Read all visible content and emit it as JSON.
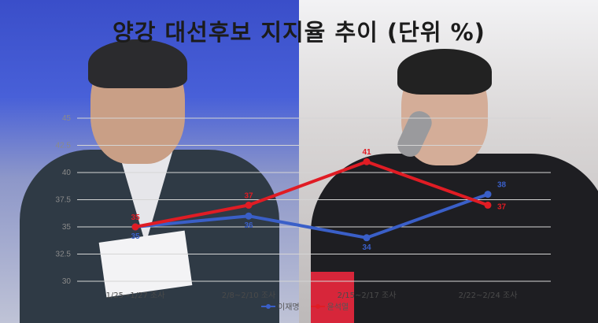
{
  "title": "양강 대선후보 지지율 추이 (단위 %)",
  "chart_data": {
    "type": "line",
    "categories": [
      "1/25~1/27 조사",
      "2/8~2/10 조사",
      "2/15~2/17 조사",
      "2/22~2/24 조사"
    ],
    "y_ticks": [
      "30",
      "32.5",
      "35",
      "37.5",
      "40",
      "42.5",
      "45"
    ],
    "ylim": [
      30,
      45
    ],
    "grid": true,
    "legend_position": "bottom",
    "series": [
      {
        "name": "이재명",
        "color": "#3a5fc8",
        "values": [
          35,
          36,
          34,
          38
        ],
        "labels": [
          "35",
          "36",
          "34",
          "38"
        ]
      },
      {
        "name": "윤석열",
        "color": "#e01c24",
        "values": [
          35,
          37,
          41,
          37
        ],
        "labels": [
          "35",
          "37",
          "41",
          "37"
        ]
      }
    ]
  }
}
